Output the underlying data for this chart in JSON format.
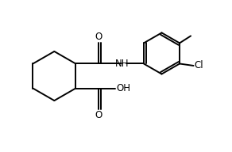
{
  "background_color": "#ffffff",
  "line_color": "#000000",
  "line_width": 1.4,
  "font_size": 8.5,
  "figsize": [
    2.92,
    1.92
  ],
  "dpi": 100,
  "xlim": [
    0.0,
    5.8
  ],
  "ylim": [
    0.0,
    3.2
  ]
}
